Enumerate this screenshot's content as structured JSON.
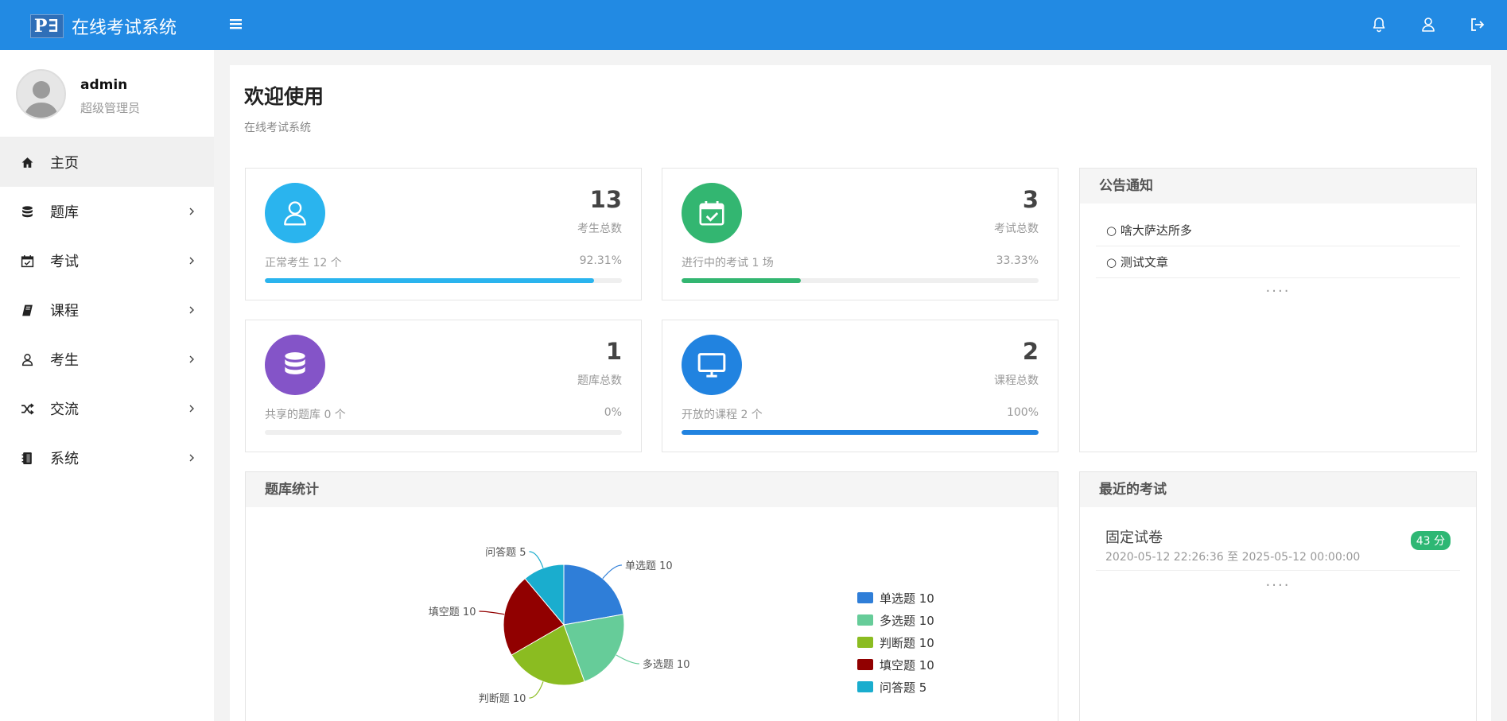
{
  "app": {
    "logo_mark": "P∃",
    "title": "在线考试系统"
  },
  "user": {
    "name": "admin",
    "role": "超级管理员"
  },
  "sidebar": {
    "items": [
      {
        "label": "主页",
        "icon": "home-icon"
      },
      {
        "label": "题库",
        "icon": "database-icon"
      },
      {
        "label": "考试",
        "icon": "calendar-check-icon"
      },
      {
        "label": "课程",
        "icon": "book-icon"
      },
      {
        "label": "考生",
        "icon": "user-icon"
      },
      {
        "label": "交流",
        "icon": "shuffle-icon"
      },
      {
        "label": "系统",
        "icon": "notebook-icon"
      }
    ]
  },
  "header": {
    "title": "欢迎使用",
    "subtitle": "在线考试系统"
  },
  "stats": [
    {
      "value": "13",
      "label": "考生总数",
      "footer": "正常考生 12 个",
      "percent": "92.31%",
      "fill": 0.9231,
      "color": "#2ab4ee",
      "icon": "user-icon"
    },
    {
      "value": "3",
      "label": "考试总数",
      "footer": "进行中的考试 1 场",
      "percent": "33.33%",
      "fill": 0.3333,
      "color": "#33b671",
      "icon": "calendar-check-icon"
    },
    {
      "value": "1",
      "label": "题库总数",
      "footer": "共享的题库 0 个",
      "percent": "0%",
      "fill": 0,
      "color": "#8454c8",
      "icon": "database-icon"
    },
    {
      "value": "2",
      "label": "课程总数",
      "footer": "开放的课程 2 个",
      "percent": "100%",
      "fill": 1,
      "color": "#2183e0",
      "icon": "monitor-icon"
    }
  ],
  "notices": {
    "title": "公告通知",
    "items": [
      "○ 啥大萨达所多",
      "○ 测试文章"
    ],
    "more": "····"
  },
  "recent_exams": {
    "title": "最近的考试",
    "items": [
      {
        "title": "固定试卷",
        "time": "2020-05-12 22:26:36 至 2025-05-12 00:00:00",
        "badge": "43 分"
      }
    ],
    "more": "····"
  },
  "question_stats": {
    "title": "题库统计"
  },
  "chart_data": {
    "type": "pie",
    "categories": [
      "单选题",
      "多选题",
      "判断题",
      "填空题",
      "问答题"
    ],
    "values": [
      10,
      10,
      10,
      10,
      5
    ],
    "labels": [
      "单选题 10",
      "多选题 10",
      "判断题 10",
      "填空题 10",
      "问答题 5"
    ],
    "colors": [
      "#2f7ed8",
      "#66cc99",
      "#8bbc21",
      "#910000",
      "#1aadce"
    ],
    "legend": "right"
  }
}
